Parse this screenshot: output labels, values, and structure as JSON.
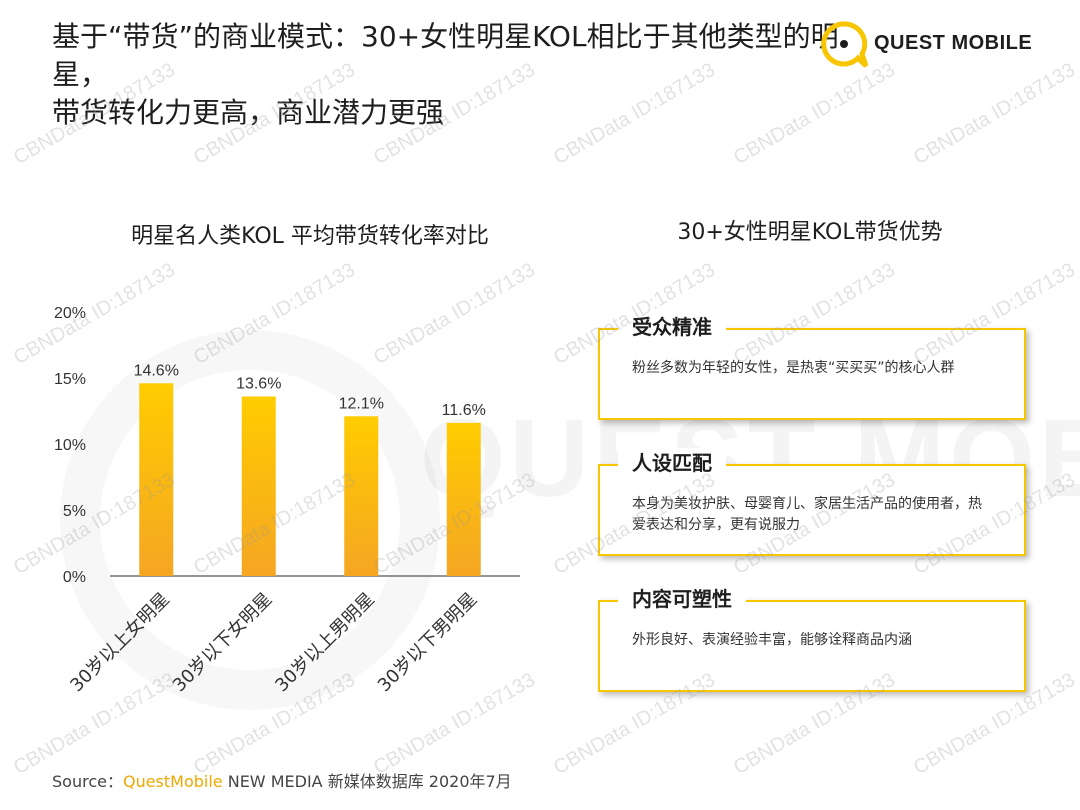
{
  "header": {
    "title_line1": "基于“带货”的商业模式：30+女性明星KOL相比于其他类型的明星，",
    "title_line2": "带货转化力更高，商业潜力更强",
    "logo_text": "QUEST MOBILE",
    "brand_color": "#f8c600"
  },
  "watermark": {
    "text": "CBNData ID:187133",
    "background_text": "QUEST MOBILE"
  },
  "chart_title": "明星名人类KOL 平均带货转化率对比",
  "chart_data": {
    "type": "bar",
    "title": "明星名人类KOL 平均带货转化率对比",
    "categories": [
      "30岁以上女明星",
      "30岁以下女明星",
      "30岁以上男明星",
      "30岁以下男明星"
    ],
    "values": [
      14.6,
      13.6,
      12.1,
      11.6
    ],
    "value_labels": [
      "14.6%",
      "13.6%",
      "12.1%",
      "11.6%"
    ],
    "ylim": [
      0,
      20
    ],
    "yticks": [
      0,
      5,
      10,
      15,
      20
    ],
    "ytick_labels": [
      "0%",
      "5%",
      "10%",
      "15%",
      "20%"
    ],
    "xlabel": "",
    "ylabel": "",
    "grid": false,
    "bar_color_top": "#ffcc00",
    "bar_color_bottom": "#f5a623"
  },
  "advantages": {
    "title": "30+女性明星KOL带货优势",
    "items": [
      {
        "heading": "受众精准",
        "body": "粉丝多数为年轻的女性，是热衷“买买买”的核心人群"
      },
      {
        "heading": "人设匹配",
        "body": "本身为美妆护肤、母婴育儿、家居生活产品的使用者，热爱表达和分享，更有说服力"
      },
      {
        "heading": "内容可塑性",
        "body": "外形良好、表演经验丰富，能够诠释商品内涵"
      }
    ]
  },
  "footer": {
    "source_prefix": "Source：",
    "source_brand": "QuestMobile",
    "source_rest": " NEW MEDIA 新媒体数据库 2020年7月"
  }
}
